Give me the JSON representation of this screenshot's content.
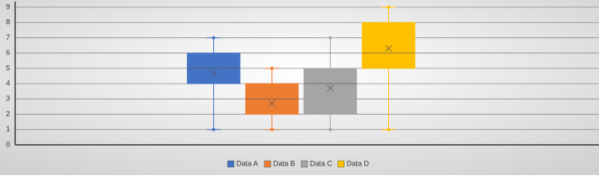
{
  "chart_data": {
    "type": "box",
    "ylim": [
      0,
      9
    ],
    "yticks": [
      0,
      1,
      2,
      3,
      4,
      5,
      6,
      7,
      8,
      9
    ],
    "grid": true,
    "legend": "bottom",
    "series": [
      {
        "name": "Data A",
        "color": "#4472c4",
        "min": 1,
        "q1": 4,
        "median": 5,
        "q3": 6,
        "max": 7,
        "mean": 4.7
      },
      {
        "name": "Data B",
        "color": "#ed7d31",
        "min": 1,
        "q1": 2,
        "median": 3,
        "q3": 4,
        "max": 5,
        "mean": 2.7
      },
      {
        "name": "Data C",
        "color": "#a5a5a5",
        "min": 1,
        "q1": 2,
        "median": 4,
        "q3": 5,
        "max": 7,
        "mean": 3.7
      },
      {
        "name": "Data D",
        "color": "#ffc000",
        "min": 1,
        "q1": 5,
        "median": 6,
        "q3": 8,
        "max": 9,
        "mean": 6.3
      }
    ]
  }
}
